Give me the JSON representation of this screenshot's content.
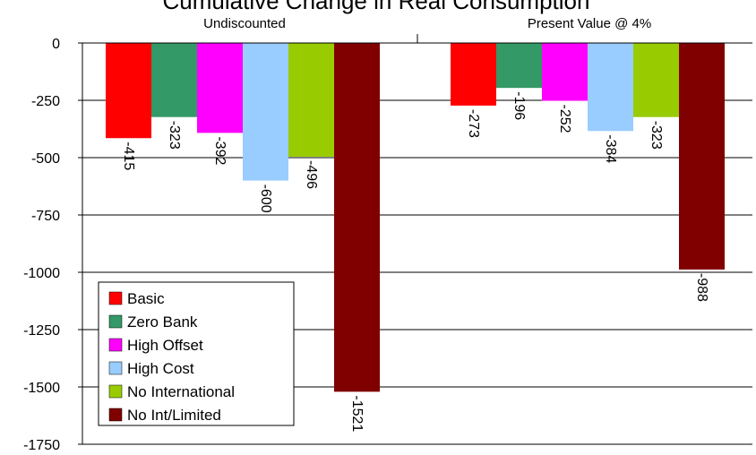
{
  "chart_data": {
    "type": "bar",
    "title": "Cumulative Change in Real Consumption",
    "categories": [
      "Undiscounted",
      "Present Value @ 4%"
    ],
    "series": [
      {
        "name": "Basic",
        "color": "#ff0000",
        "values": [
          -415,
          -273
        ]
      },
      {
        "name": "Zero Bank",
        "color": "#339966",
        "values": [
          -323,
          -196
        ]
      },
      {
        "name": "High Offset",
        "color": "#ff00ff",
        "values": [
          -392,
          -252
        ]
      },
      {
        "name": "High Cost",
        "color": "#99ccff",
        "values": [
          -600,
          -384
        ]
      },
      {
        "name": "No International",
        "color": "#99cc00",
        "values": [
          -496,
          -323
        ]
      },
      {
        "name": "No Int/Limited",
        "color": "#800000",
        "values": [
          -1521,
          -988
        ]
      }
    ],
    "ylim": [
      -1750,
      0
    ],
    "yticks": [
      "0",
      "-250",
      "-500",
      "-750",
      "-1000",
      "-1250",
      "-1500",
      "-1750"
    ],
    "ytick_values": [
      0,
      -250,
      -500,
      -750,
      -1000,
      -1250,
      -1500,
      -1750
    ],
    "grid": true,
    "legend_position": "bottom-left",
    "data_labels": true
  }
}
